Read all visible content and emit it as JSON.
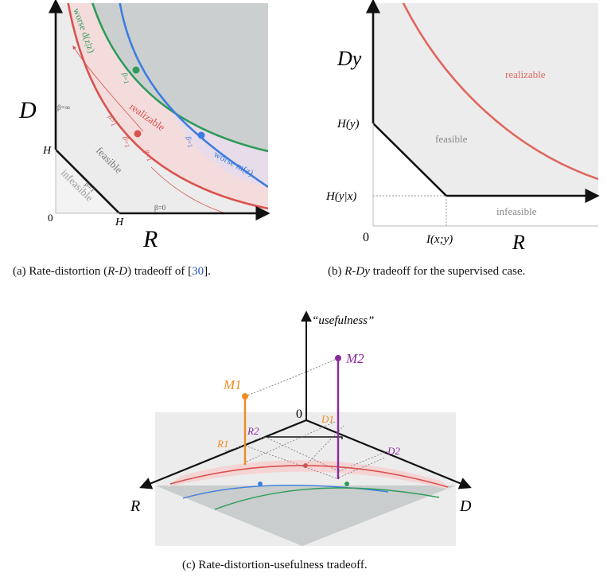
{
  "colors": {
    "red": "#d9534f",
    "green": "#2e9b5a",
    "blue": "#3d7de0",
    "orange": "#ee8c1f",
    "purple": "#8b2a9e",
    "gray_fill": "#e6e6e6",
    "dark_gray": "#c9cdcd"
  },
  "panel_a": {
    "axis_y": "D",
    "axis_x": "R",
    "origin": "0",
    "h_on_y": "H",
    "h_on_x": "H",
    "beta_inf": "β=∞",
    "beta_zero": "β=0",
    "beta_one_diag": "β=1",
    "beta_one_green": "β=1",
    "beta_one_red": "β=1",
    "beta_one_blue": "β=1",
    "beta_gt1": "β>1",
    "beta_lt1": "β<1",
    "worse_d": "worse d(z|z)",
    "worse_m": "worse m(z)",
    "realizable": "realizable",
    "feasible": "feasible",
    "infeasible": "infeasible",
    "caption_prefix": "(a) Rate-distortion (",
    "caption_math": "R-D",
    "caption_mid": ") tradeoff of [",
    "caption_ref": "30",
    "caption_suffix": "]."
  },
  "panel_b": {
    "axis_y": "Dy",
    "axis_x": "R",
    "origin": "0",
    "h_y": "H(y)",
    "h_y_x": "H(y|x)",
    "i_xy": "I(x;y)",
    "realizable": "realizable",
    "feasible": "feasible",
    "infeasible": "infeasible",
    "caption_prefix": "(b) ",
    "caption_math": "R-Dy",
    "caption_suffix": " tradeoff for the supervised case."
  },
  "panel_c": {
    "axis_up": "“usefulness”",
    "axis_r": "R",
    "axis_d": "D",
    "origin": "0",
    "m1": "M1",
    "m2": "M2",
    "r1": "R1",
    "r2": "R2",
    "d1": "D1",
    "d2": "D2",
    "caption": "(c) Rate-distortion-usefulness tradeoff."
  }
}
